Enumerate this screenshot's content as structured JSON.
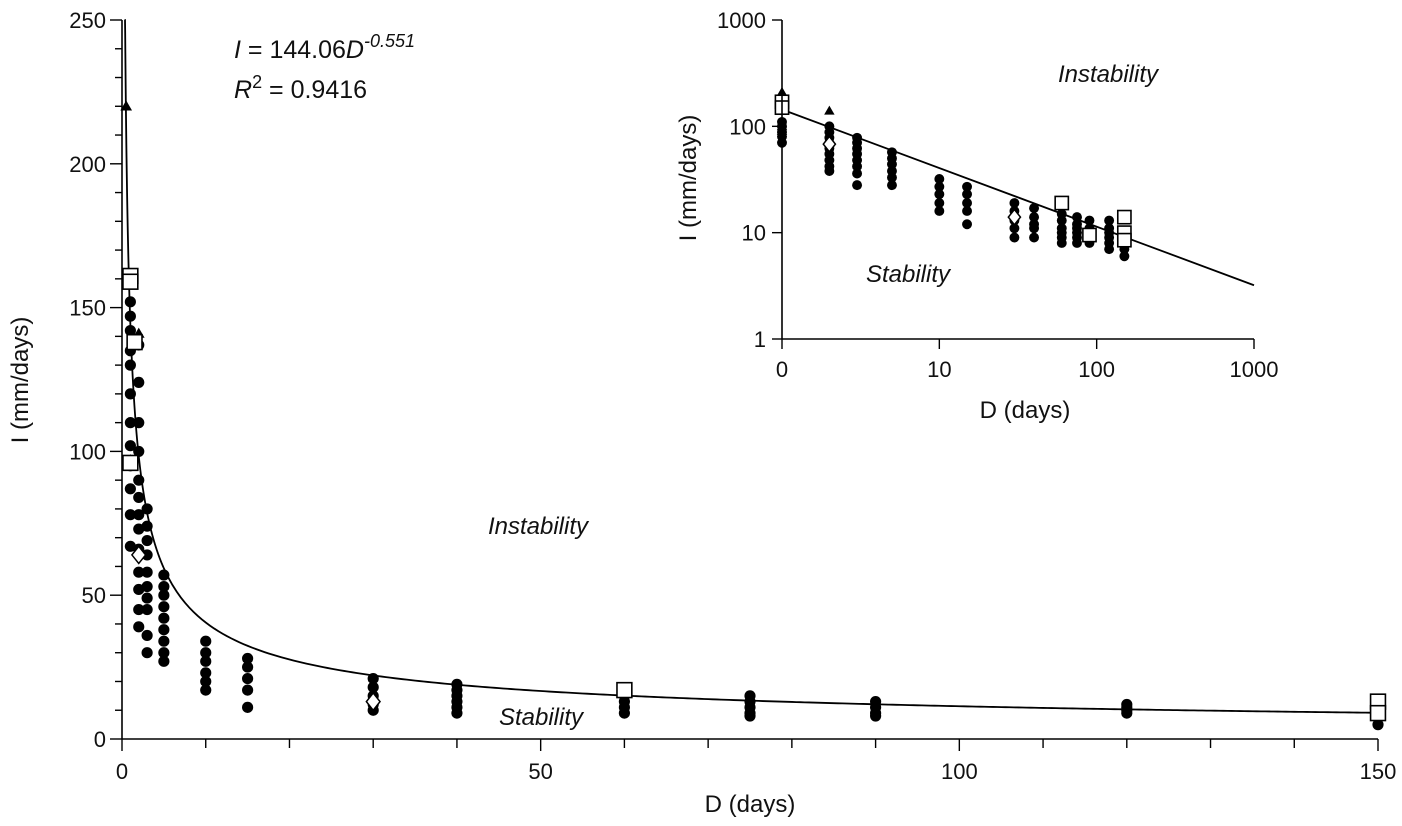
{
  "chart_data": [
    {
      "type": "scatter",
      "xlabel": "D (days)",
      "ylabel": "I (mm/days)",
      "xlim": [
        0,
        150
      ],
      "ylim": [
        0,
        250
      ],
      "x_ticks": [
        0,
        50,
        100,
        150
      ],
      "y_ticks": [
        0,
        50,
        100,
        150,
        200,
        250
      ],
      "grid": false,
      "equation": {
        "prefix": "I",
        "mid": " = 144.06",
        "base": "D",
        "exponent": "-0.551"
      },
      "r_squared": {
        "symbol": "R",
        "power": "2",
        "value": " = 0.9416"
      },
      "regions": {
        "above": "Instability",
        "below": "Stability"
      },
      "fit": {
        "a": 144.06,
        "b": -0.551
      },
      "series": [
        {
          "marker": "circle",
          "points": [
            [
              1,
              152
            ],
            [
              1,
              147
            ],
            [
              1,
              142
            ],
            [
              1,
              135
            ],
            [
              1,
              130
            ],
            [
              1,
              120
            ],
            [
              1,
              110
            ],
            [
              1,
              102
            ],
            [
              1,
              95
            ],
            [
              1,
              87
            ],
            [
              1,
              78
            ],
            [
              1,
              67
            ],
            [
              2,
              137
            ],
            [
              2,
              124
            ],
            [
              2,
              110
            ],
            [
              2,
              100
            ],
            [
              2,
              90
            ],
            [
              2,
              84
            ],
            [
              2,
              78
            ],
            [
              2,
              73
            ],
            [
              2,
              66
            ],
            [
              2,
              58
            ],
            [
              2,
              52
            ],
            [
              2,
              45
            ],
            [
              2,
              39
            ],
            [
              3,
              80
            ],
            [
              3,
              74
            ],
            [
              3,
              69
            ],
            [
              3,
              64
            ],
            [
              3,
              58
            ],
            [
              3,
              53
            ],
            [
              3,
              49
            ],
            [
              3,
              45
            ],
            [
              3,
              36
            ],
            [
              3,
              30
            ],
            [
              5,
              57
            ],
            [
              5,
              53
            ],
            [
              5,
              50
            ],
            [
              5,
              46
            ],
            [
              5,
              42
            ],
            [
              5,
              38
            ],
            [
              5,
              34
            ],
            [
              5,
              30
            ],
            [
              5,
              27
            ],
            [
              10,
              34
            ],
            [
              10,
              30
            ],
            [
              10,
              27
            ],
            [
              10,
              23
            ],
            [
              10,
              20
            ],
            [
              10,
              17
            ],
            [
              15,
              28
            ],
            [
              15,
              25
            ],
            [
              15,
              21
            ],
            [
              15,
              17
            ],
            [
              15,
              11
            ],
            [
              30,
              21
            ],
            [
              30,
              18
            ],
            [
              30,
              15
            ],
            [
              30,
              12
            ],
            [
              30,
              10
            ],
            [
              40,
              19
            ],
            [
              40,
              17
            ],
            [
              40,
              15
            ],
            [
              40,
              13
            ],
            [
              40,
              11
            ],
            [
              40,
              9
            ],
            [
              60,
              15
            ],
            [
              60,
              13
            ],
            [
              60,
              11
            ],
            [
              60,
              9
            ],
            [
              75,
              15
            ],
            [
              75,
              13
            ],
            [
              75,
              11
            ],
            [
              75,
              9
            ],
            [
              75,
              8
            ],
            [
              90,
              13
            ],
            [
              90,
              11
            ],
            [
              90,
              9
            ],
            [
              90,
              8
            ],
            [
              120,
              12
            ],
            [
              120,
              11
            ],
            [
              120,
              10
            ],
            [
              120,
              9
            ],
            [
              150,
              5
            ]
          ]
        },
        {
          "marker": "triangle",
          "points": [
            [
              0.5,
              220
            ],
            [
              1,
              160
            ],
            [
              1,
              97
            ],
            [
              2,
              141
            ]
          ]
        },
        {
          "marker": "square",
          "points": [
            [
              1,
              161
            ],
            [
              1,
              159
            ],
            [
              1.5,
              138
            ],
            [
              1,
              96
            ],
            [
              60,
              17
            ],
            [
              150,
              13
            ],
            [
              150,
              9
            ]
          ]
        },
        {
          "marker": "diamond",
          "points": [
            [
              2,
              64
            ],
            [
              30,
              13
            ]
          ]
        }
      ]
    },
    {
      "type": "scatter",
      "xlabel": "D (days)",
      "ylabel": "I (mm/days)",
      "xscale": "log",
      "yscale": "log",
      "xlim": [
        1,
        1000
      ],
      "ylim": [
        1,
        1000
      ],
      "x_tick_values": [
        1,
        10,
        100,
        1000
      ],
      "x_tick_labels": [
        "0",
        "10",
        "100",
        "1000"
      ],
      "y_tick_values": [
        1,
        10,
        100,
        1000
      ],
      "y_tick_labels": [
        "1",
        "10",
        "100",
        "1000"
      ],
      "grid": false,
      "regions": {
        "above": "Instability",
        "below": "Stability"
      },
      "fit": {
        "a": 144.06,
        "b": -0.551
      },
      "series": [
        {
          "marker": "circle",
          "points": [
            [
              1,
              110
            ],
            [
              1,
              100
            ],
            [
              1,
              88
            ],
            [
              1,
              80
            ],
            [
              1,
              70
            ],
            [
              2,
              100
            ],
            [
              2,
              88
            ],
            [
              2,
              78
            ],
            [
              2,
              70
            ],
            [
              2,
              62
            ],
            [
              2,
              55
            ],
            [
              2,
              48
            ],
            [
              2,
              42
            ],
            [
              2,
              38
            ],
            [
              3,
              78
            ],
            [
              3,
              70
            ],
            [
              3,
              62
            ],
            [
              3,
              55
            ],
            [
              3,
              48
            ],
            [
              3,
              42
            ],
            [
              3,
              36
            ],
            [
              3,
              28
            ],
            [
              5,
              57
            ],
            [
              5,
              50
            ],
            [
              5,
              44
            ],
            [
              5,
              38
            ],
            [
              5,
              33
            ],
            [
              5,
              28
            ],
            [
              10,
              32
            ],
            [
              10,
              27
            ],
            [
              10,
              23
            ],
            [
              10,
              19
            ],
            [
              10,
              16
            ],
            [
              15,
              27
            ],
            [
              15,
              23
            ],
            [
              15,
              19
            ],
            [
              15,
              16
            ],
            [
              15,
              12
            ],
            [
              30,
              19
            ],
            [
              30,
              16
            ],
            [
              30,
              13
            ],
            [
              30,
              11
            ],
            [
              30,
              9
            ],
            [
              40,
              17
            ],
            [
              40,
              14
            ],
            [
              40,
              12
            ],
            [
              40,
              11
            ],
            [
              40,
              9
            ],
            [
              60,
              15
            ],
            [
              60,
              13
            ],
            [
              60,
              11
            ],
            [
              60,
              10
            ],
            [
              60,
              9
            ],
            [
              60,
              8
            ],
            [
              75,
              14
            ],
            [
              75,
              12
            ],
            [
              75,
              11
            ],
            [
              75,
              10
            ],
            [
              75,
              9
            ],
            [
              75,
              8
            ],
            [
              90,
              13
            ],
            [
              90,
              11
            ],
            [
              90,
              10
            ],
            [
              90,
              9
            ],
            [
              90,
              8
            ],
            [
              120,
              13
            ],
            [
              120,
              11
            ],
            [
              120,
              10
            ],
            [
              120,
              9
            ],
            [
              120,
              8
            ],
            [
              120,
              7
            ],
            [
              150,
              9
            ],
            [
              150,
              7
            ],
            [
              150,
              6
            ]
          ]
        },
        {
          "marker": "triangle",
          "points": [
            [
              1,
              210
            ],
            [
              1,
              100
            ],
            [
              1,
              90
            ],
            [
              2,
              140
            ]
          ]
        },
        {
          "marker": "square",
          "points": [
            [
              1,
              170
            ],
            [
              1,
              150
            ],
            [
              60,
              19
            ],
            [
              90,
              9.5
            ],
            [
              150,
              14
            ],
            [
              150,
              10
            ],
            [
              150,
              8.5
            ]
          ]
        },
        {
          "marker": "diamond",
          "points": [
            [
              2,
              68
            ],
            [
              30,
              14
            ]
          ]
        }
      ]
    }
  ]
}
